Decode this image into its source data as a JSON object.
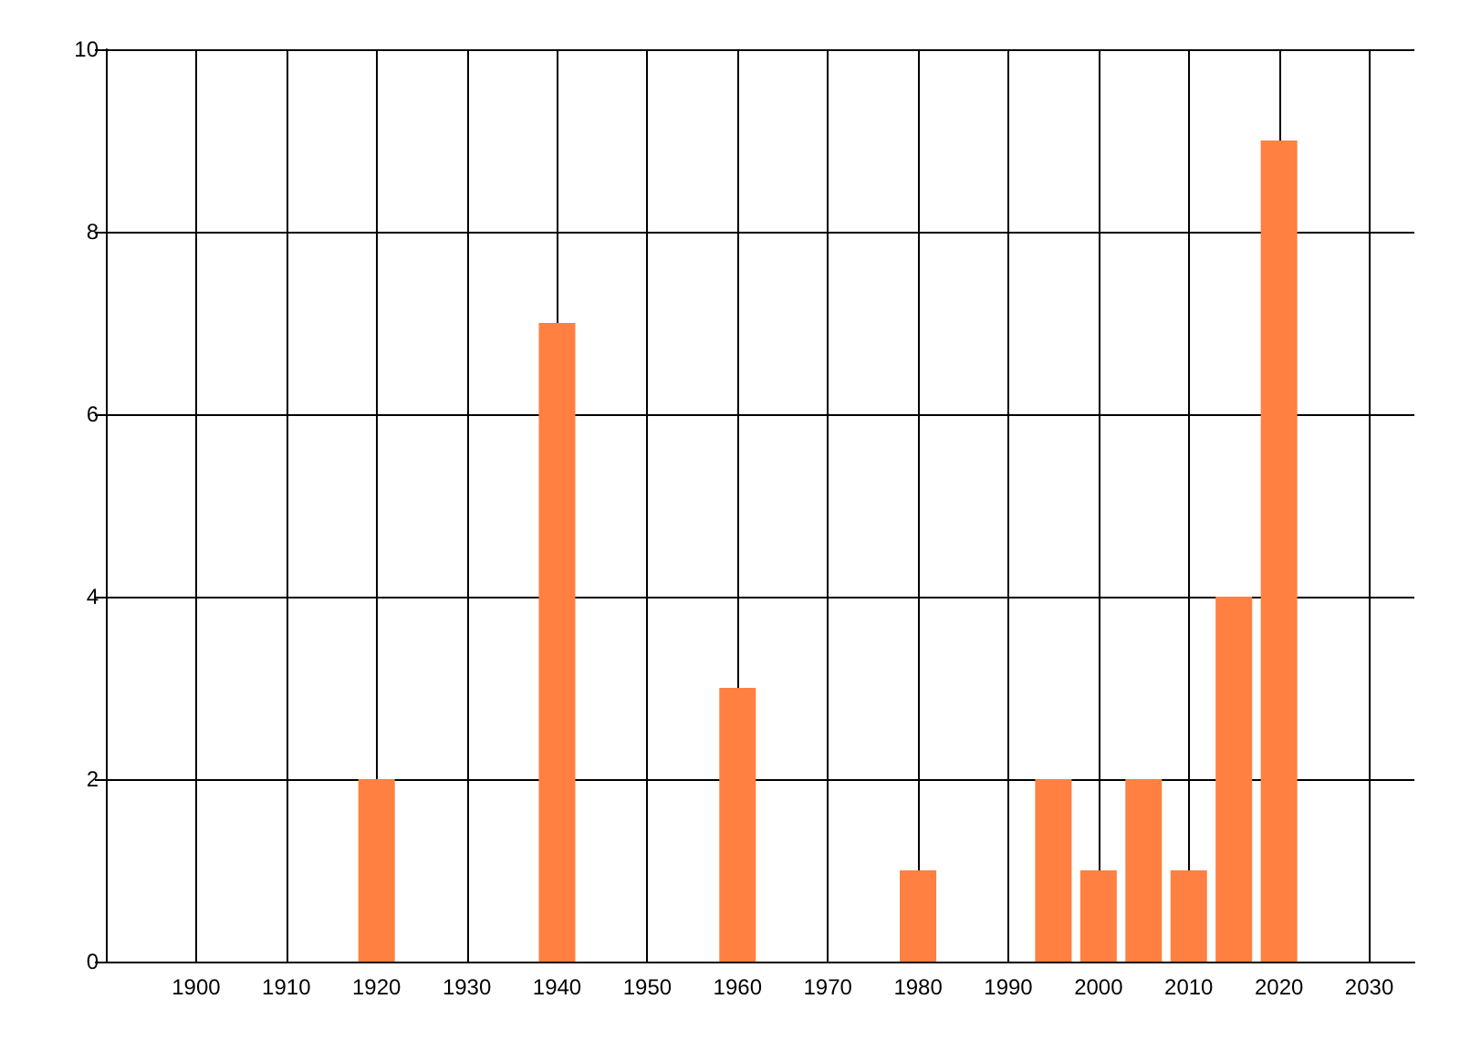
{
  "chart_data": {
    "type": "bar",
    "x": [
      1920,
      1940,
      1960,
      1980,
      1995,
      2000,
      2005,
      2010,
      2015,
      2020
    ],
    "values": [
      2,
      7,
      3,
      1,
      2,
      1,
      2,
      1,
      4,
      9
    ],
    "color": "#ff8040",
    "xlim": [
      1890,
      2035
    ],
    "xticks": [
      1900,
      1910,
      1920,
      1930,
      1940,
      1950,
      1960,
      1970,
      1980,
      1990,
      2000,
      2010,
      2020,
      2030
    ],
    "ylim": [
      0,
      10
    ],
    "yticks": [
      0,
      2,
      4,
      6,
      8,
      10
    ],
    "grid": true
  }
}
